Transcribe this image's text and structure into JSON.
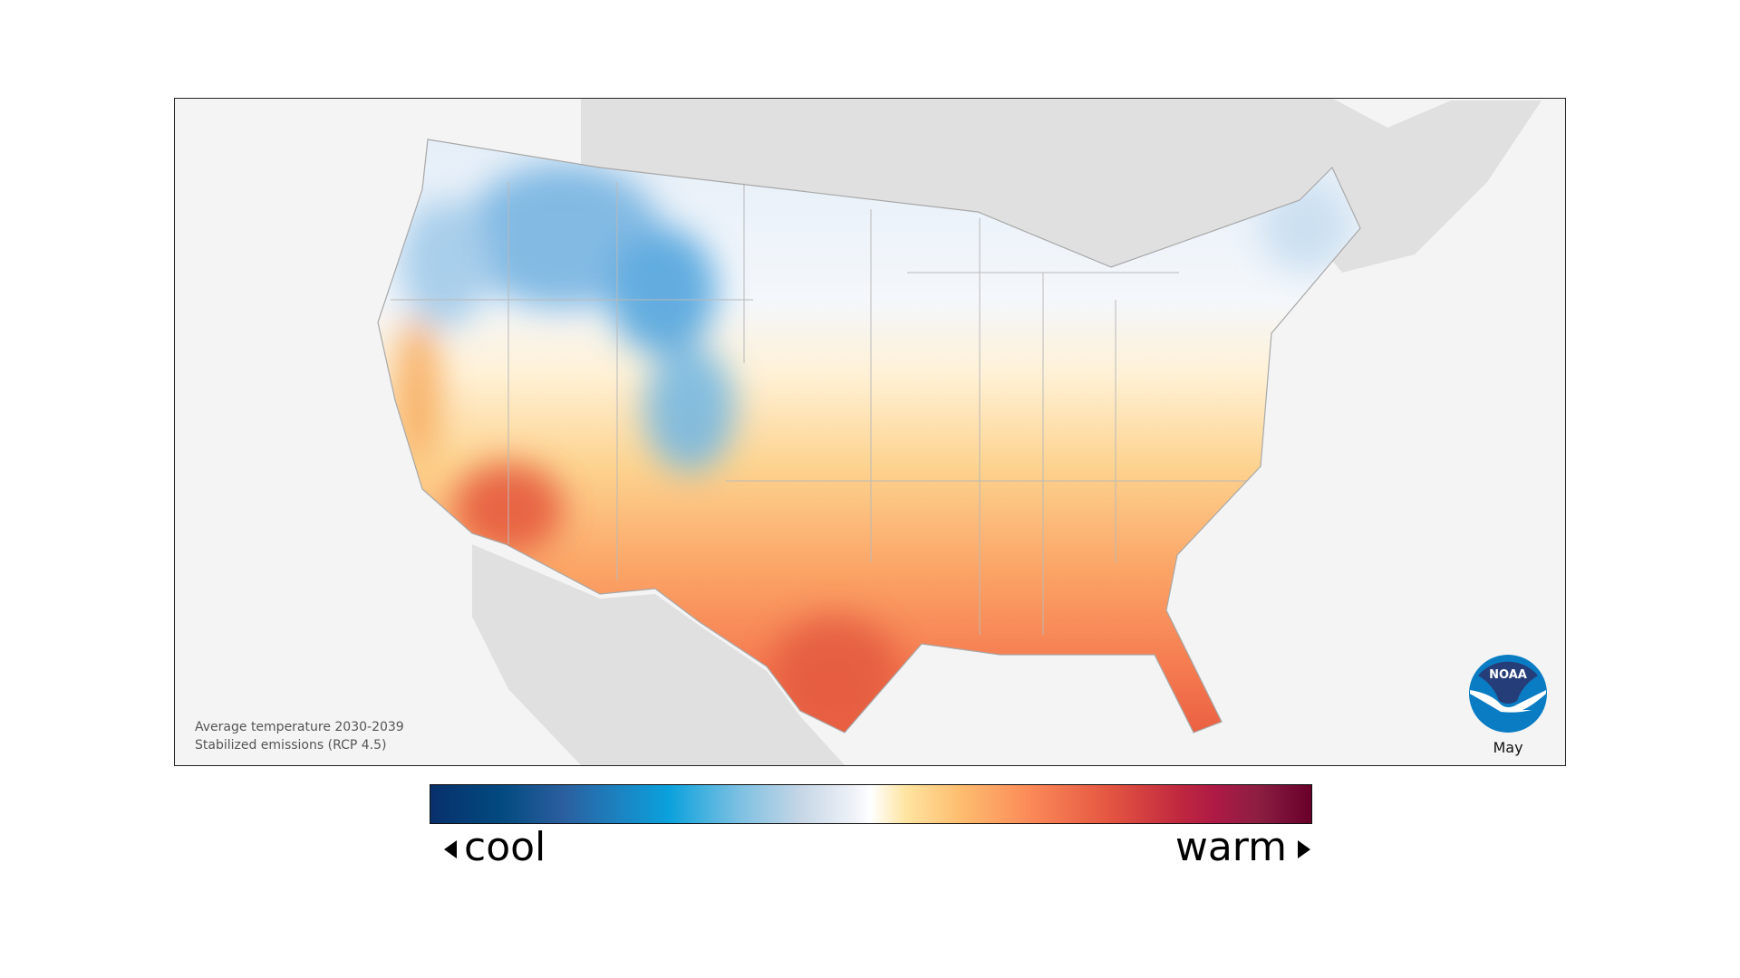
{
  "caption": {
    "line1": "Average temperature 2030-2039",
    "line2": "Stabilized emissions (RCP 4.5)"
  },
  "logo": {
    "text": "NOAA",
    "dark_blue": "#253d78",
    "light_blue": "#0a7cc4"
  },
  "month": "May",
  "legend": {
    "cool_label": "cool",
    "warm_label": "warm",
    "colors": [
      "#08306b",
      "#0aa1dc",
      "#ffffff",
      "#fdbe70",
      "#e45641",
      "#68002a"
    ]
  }
}
